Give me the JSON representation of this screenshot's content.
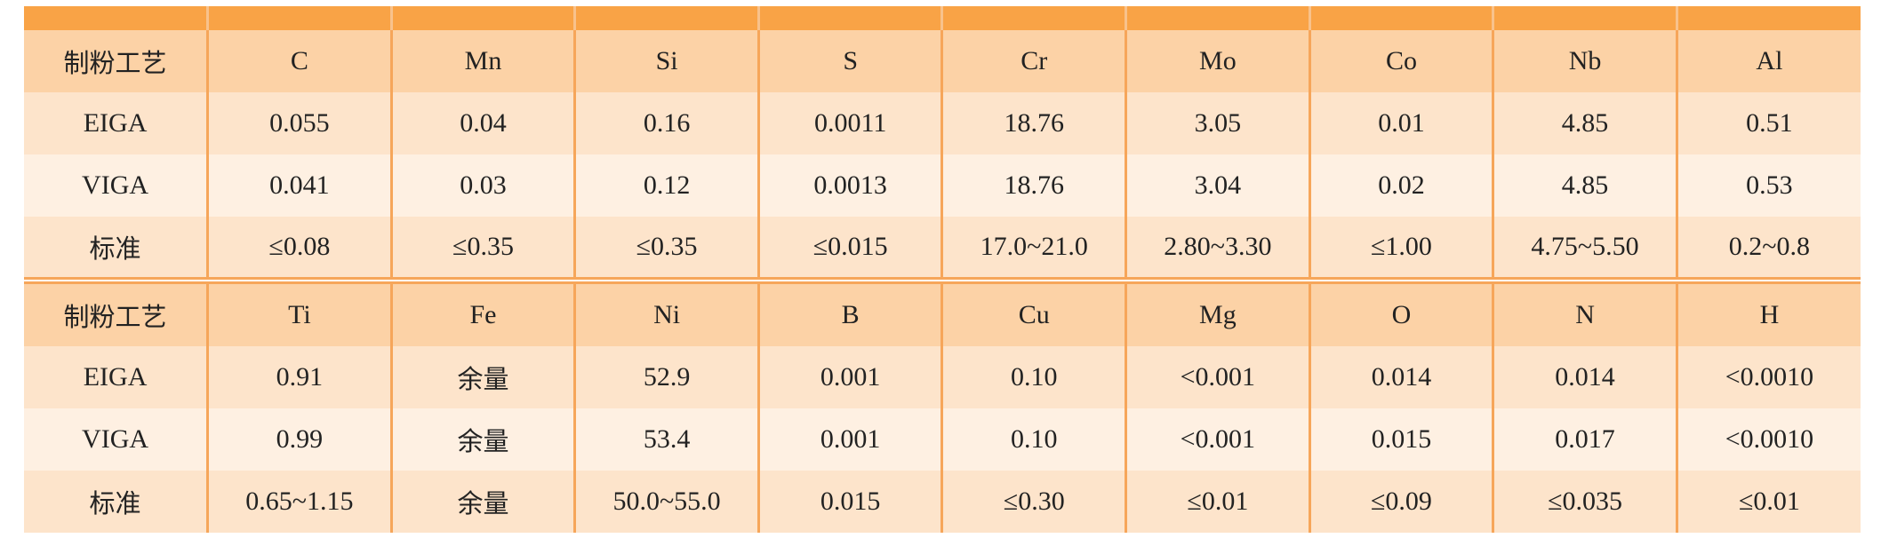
{
  "table_top": {
    "header": [
      "制粉工艺",
      "C",
      "Mn",
      "Si",
      "S",
      "Cr",
      "Mo",
      "Co",
      "Nb",
      "Al"
    ],
    "rows": [
      [
        "EIGA",
        "0.055",
        "0.04",
        "0.16",
        "0.0011",
        "18.76",
        "3.05",
        "0.01",
        "4.85",
        "0.51"
      ],
      [
        "VIGA",
        "0.041",
        "0.03",
        "0.12",
        "0.0013",
        "18.76",
        "3.04",
        "0.02",
        "4.85",
        "0.53"
      ],
      [
        "标准",
        "≤0.08",
        "≤0.35",
        "≤0.35",
        "≤0.015",
        "17.0~21.0",
        "2.80~3.30",
        "≤1.00",
        "4.75~5.50",
        "0.2~0.8"
      ]
    ]
  },
  "table_bottom": {
    "header": [
      "制粉工艺",
      "Ti",
      "Fe",
      "Ni",
      "B",
      "Cu",
      "Mg",
      "O",
      "N",
      "H"
    ],
    "rows": [
      [
        "EIGA",
        "0.91",
        "余量",
        "52.9",
        "0.001",
        "0.10",
        "<0.001",
        "0.014",
        "0.014",
        "<0.0010"
      ],
      [
        "VIGA",
        "0.99",
        "余量",
        "53.4",
        "0.001",
        "0.10",
        "<0.001",
        "0.015",
        "0.017",
        "<0.0010"
      ],
      [
        "标准",
        "0.65~1.15",
        "余量",
        "50.0~55.0",
        "0.015",
        "≤0.30",
        "≤0.01",
        "≤0.09",
        "≤0.035",
        "≤0.01"
      ]
    ]
  },
  "colors": {
    "top_bar": "#f9a346",
    "header_bg": "#fcd2a6",
    "row_dark": "#fde4cb",
    "row_light": "#fef0e2",
    "grid_line": "#f6a65a"
  }
}
